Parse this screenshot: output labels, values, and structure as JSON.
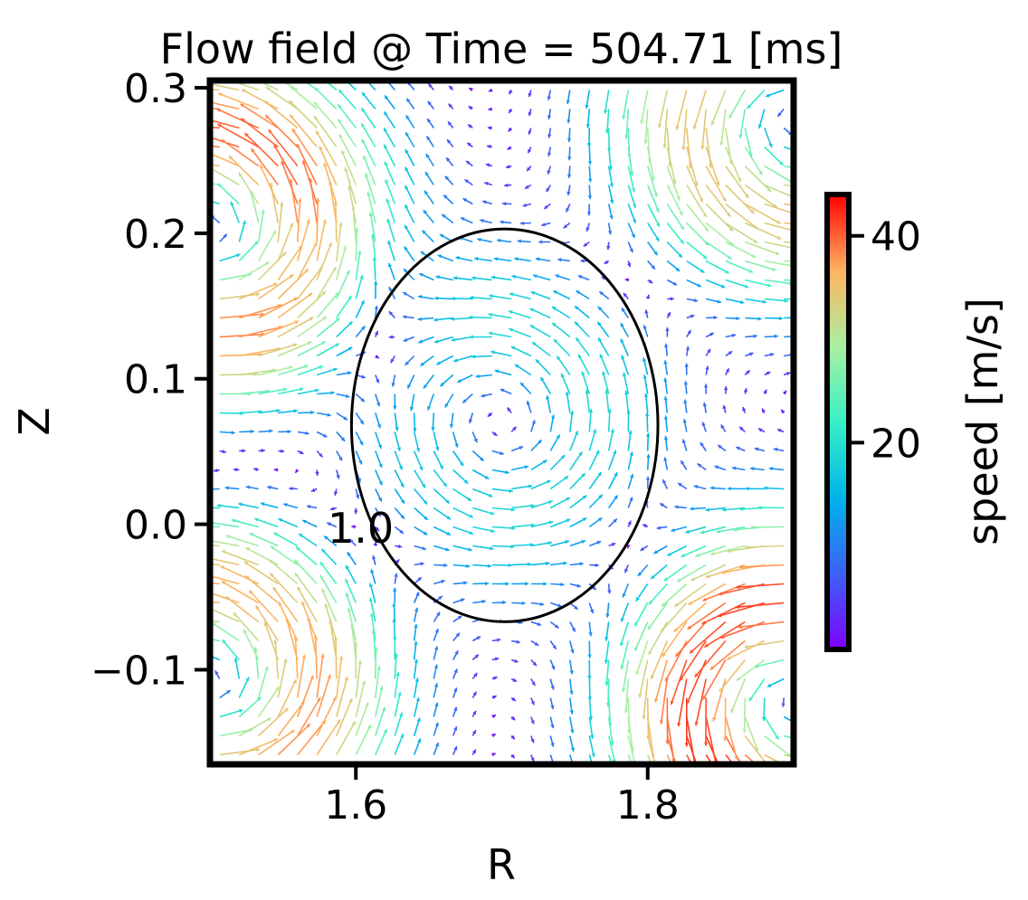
{
  "chart_data": {
    "type": "quiver",
    "title": "Flow field @ Time = 504.71 [ms]",
    "xlabel": "R",
    "ylabel": "Z",
    "xlim": [
      1.5,
      1.9
    ],
    "ylim": [
      -0.165,
      0.305
    ],
    "x_ticks": [
      1.6,
      1.8
    ],
    "x_tick_labels": [
      "1.6",
      "1.8"
    ],
    "y_ticks": [
      -0.1,
      0.0,
      0.1,
      0.2,
      0.3
    ],
    "y_tick_labels": [
      "−0.1",
      "0.0",
      "0.1",
      "0.2",
      "0.3"
    ],
    "grid": false,
    "colorbar": {
      "label": "speed [m/s]",
      "range": [
        0,
        44
      ],
      "ticks": [
        20,
        40
      ],
      "tick_labels": [
        "20",
        "40"
      ],
      "colormap": "rainbow",
      "stops": [
        "#7f00ff",
        "#3b62f5",
        "#00b4eb",
        "#37f0c5",
        "#a9f0a1",
        "#ffb360",
        "#ff0000"
      ]
    },
    "contour": {
      "label": "1.0",
      "level": 1.0,
      "color": "#000000",
      "center_R": 1.702,
      "center_Z": 0.068,
      "half_width_R": 0.105,
      "half_height_Z": 0.135
    },
    "vortices": [
      {
        "R": 1.7,
        "Z": 0.07,
        "strength": 20
      },
      {
        "R": 1.5,
        "Z": 0.2,
        "strength": 40
      },
      {
        "R": 1.5,
        "Z": -0.11,
        "strength": 38
      },
      {
        "R": 1.9,
        "Z": 0.28,
        "strength": 35
      },
      {
        "R": 1.9,
        "Z": -0.12,
        "strength": 42
      }
    ]
  }
}
